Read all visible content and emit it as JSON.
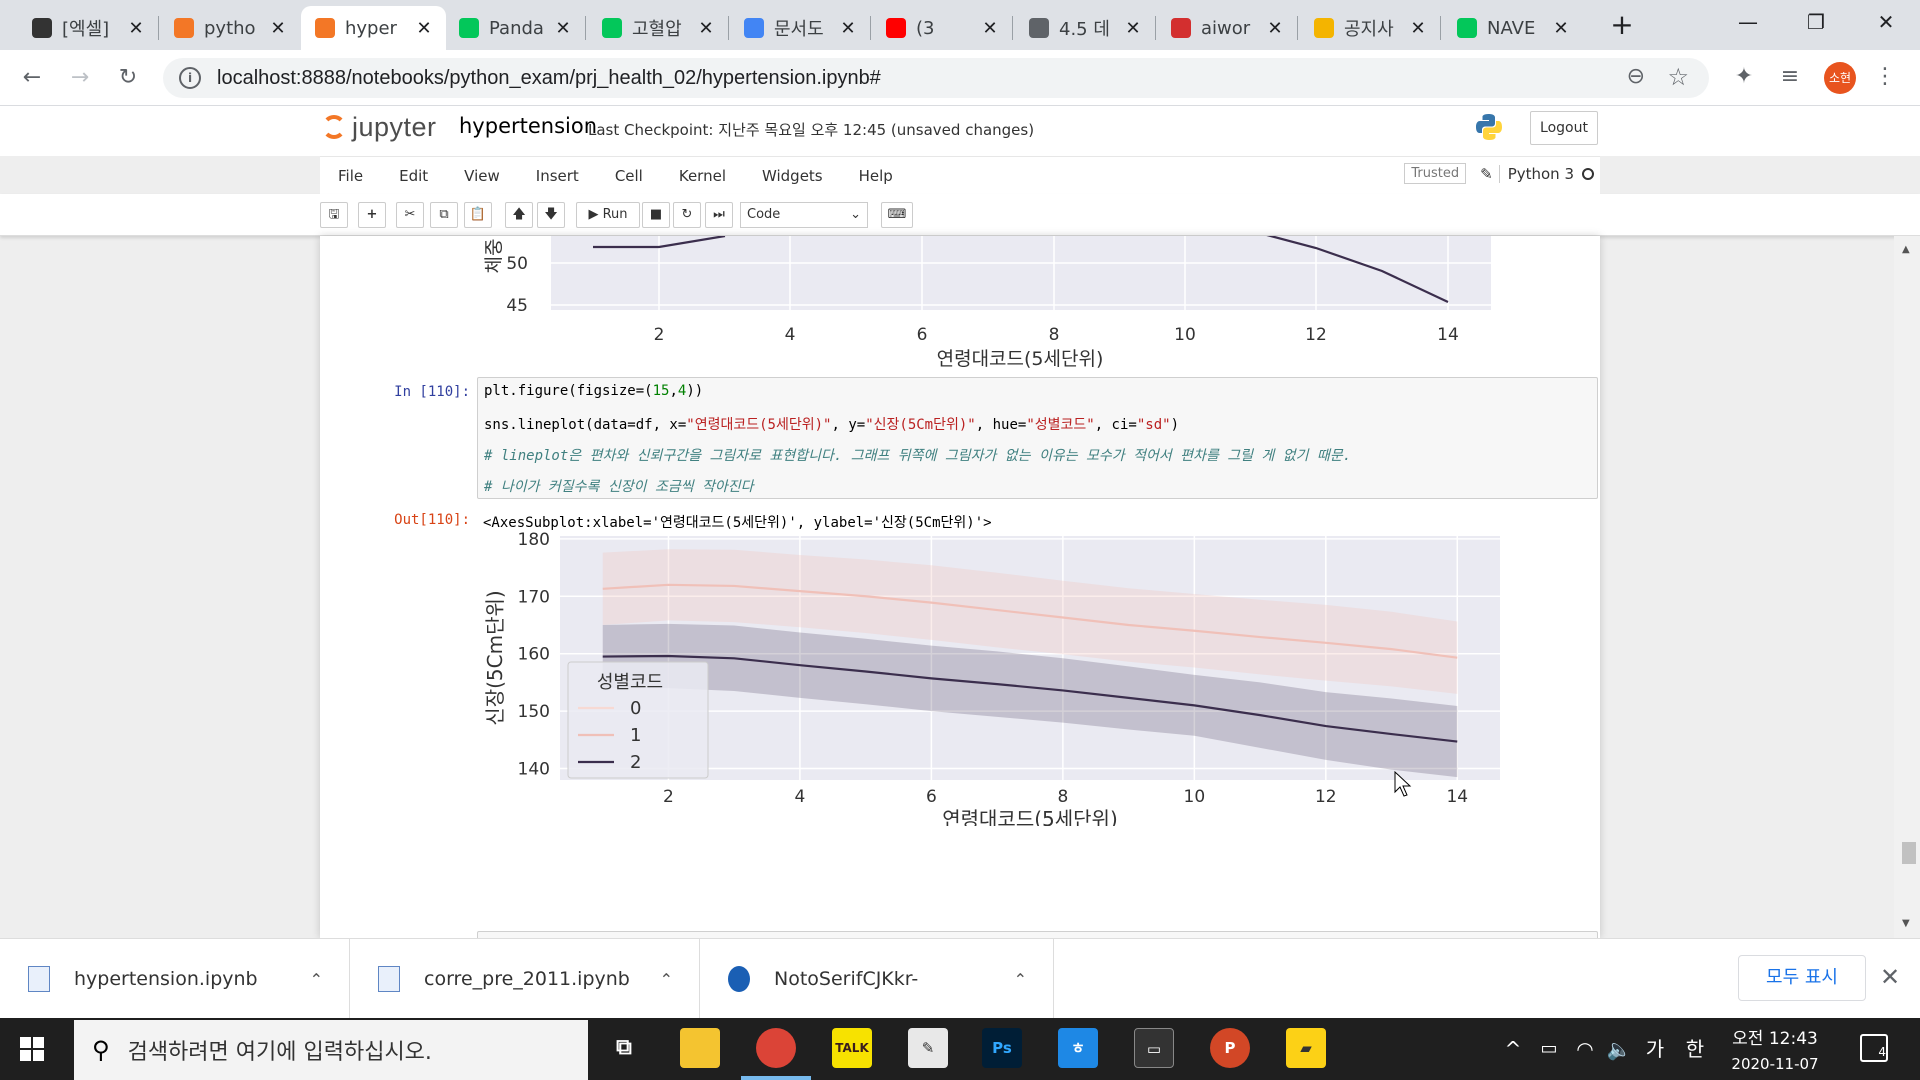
{
  "browser": {
    "tabs": [
      {
        "title": "[엑셀]",
        "icon": "dots-icon",
        "color": "#333333"
      },
      {
        "title": "pytho",
        "icon": "jupyter-icon",
        "color": "#f37726"
      },
      {
        "title": "hyper",
        "icon": "notebook-icon",
        "color": "#f37726",
        "active": true
      },
      {
        "title": "Panda",
        "icon": "blog-icon",
        "color": "#03c75a"
      },
      {
        "title": "고혈압",
        "icon": "naver-icon",
        "color": "#03c75a"
      },
      {
        "title": "문서도",
        "icon": "colorful-icon",
        "color": "#4285f4"
      },
      {
        "title": "(3",
        "icon": "youtube-icon",
        "color": "#ff0000"
      },
      {
        "title": "4.5 데",
        "icon": "globe-icon",
        "color": "#5f6368"
      },
      {
        "title": "aiwor",
        "icon": "brand-icon",
        "color": "#d32f2f"
      },
      {
        "title": "공지사",
        "icon": "lines-icon",
        "color": "#f4b400"
      },
      {
        "title": "NAVE",
        "icon": "naver-icon",
        "color": "#03c75a"
      }
    ],
    "url": "localhost:8888/notebooks/python_exam/prj_health_02/hypertension.ipynb#",
    "profile": "소현"
  },
  "jupyter": {
    "logo": "jupyter",
    "notebook_name": "hypertension",
    "checkpoint": "Last Checkpoint: 지난주 목요일 오후 12:45  (unsaved changes)",
    "logout": "Logout",
    "menu": [
      "File",
      "Edit",
      "View",
      "Insert",
      "Cell",
      "Kernel",
      "Widgets",
      "Help"
    ],
    "trusted": "Trusted",
    "kernel": "Python 3",
    "run_label": "Run",
    "cell_type": "Code"
  },
  "cell_110": {
    "in_prompt": "In [110]:",
    "out_prompt": "Out[110]:",
    "output_text": "<AxesSubplot:xlabel='연령대코드(5세단위)', ylabel='신장(5Cm단위)'>"
  },
  "prev_chart": {
    "ylabel": "체중",
    "xlabel": "연령대코드(5세단위)",
    "yticks": [
      "50",
      "45"
    ],
    "xticks": [
      "2",
      "4",
      "6",
      "8",
      "10",
      "12",
      "14"
    ]
  },
  "chart_data": {
    "type": "line",
    "title": "",
    "xlabel": "연령대코드(5세단위)",
    "ylabel": "신장(5Cm단위)",
    "xlim": [
      0.35,
      14.65
    ],
    "ylim": [
      138,
      180.5
    ],
    "xticks": [
      2,
      4,
      6,
      8,
      10,
      12,
      14
    ],
    "yticks": [
      140,
      150,
      160,
      170,
      180
    ],
    "legend": {
      "title": "성별코드",
      "placement": "lower-left",
      "entries": [
        "0",
        "1",
        "2"
      ]
    },
    "x": [
      1,
      2,
      3,
      4,
      5,
      6,
      7,
      8,
      9,
      10,
      11,
      12,
      13,
      14
    ],
    "series": [
      {
        "name": "1",
        "color": "#f0c0b8",
        "values": [
          171.3,
          172.0,
          171.8,
          170.9,
          170.0,
          168.9,
          167.6,
          166.3,
          165.0,
          164.0,
          162.9,
          161.9,
          160.8,
          159.3
        ],
        "lower": [
          165.0,
          165.8,
          165.5,
          164.6,
          163.6,
          162.4,
          161.1,
          159.9,
          158.6,
          157.6,
          156.4,
          155.3,
          154.3,
          153.0
        ],
        "upper": [
          177.6,
          178.2,
          178.1,
          177.2,
          176.4,
          175.4,
          174.1,
          172.7,
          171.4,
          170.4,
          169.4,
          168.5,
          167.3,
          165.6
        ]
      },
      {
        "name": "2",
        "color": "#3b2e4d",
        "values": [
          159.5,
          159.6,
          159.2,
          158.0,
          156.9,
          155.7,
          154.7,
          153.6,
          152.3,
          151.0,
          149.3,
          147.4,
          146.0,
          144.7
        ],
        "lower": [
          154.0,
          154.0,
          153.5,
          152.3,
          151.2,
          150.0,
          149.0,
          148.0,
          146.8,
          145.7,
          143.6,
          141.5,
          139.8,
          138.5
        ],
        "upper": [
          165.0,
          165.2,
          164.9,
          163.7,
          162.6,
          161.4,
          160.4,
          159.2,
          157.8,
          156.3,
          155.0,
          153.3,
          152.2,
          150.9
        ]
      }
    ],
    "grid": true
  },
  "downloads": [
    {
      "name": "hypertension.ipynb"
    },
    {
      "name": "corre_pre_2011.ipynb"
    },
    {
      "name": "NotoSerifCJKkr-"
    }
  ],
  "download_bar": {
    "show_all": "모두 표시"
  },
  "taskbar": {
    "search_placeholder": "검색하려면 여기에 입력하십시오.",
    "time": "오전 12:43",
    "date": "2020-11-07",
    "ime": "가",
    "ime2": "한",
    "notifications": "4"
  }
}
